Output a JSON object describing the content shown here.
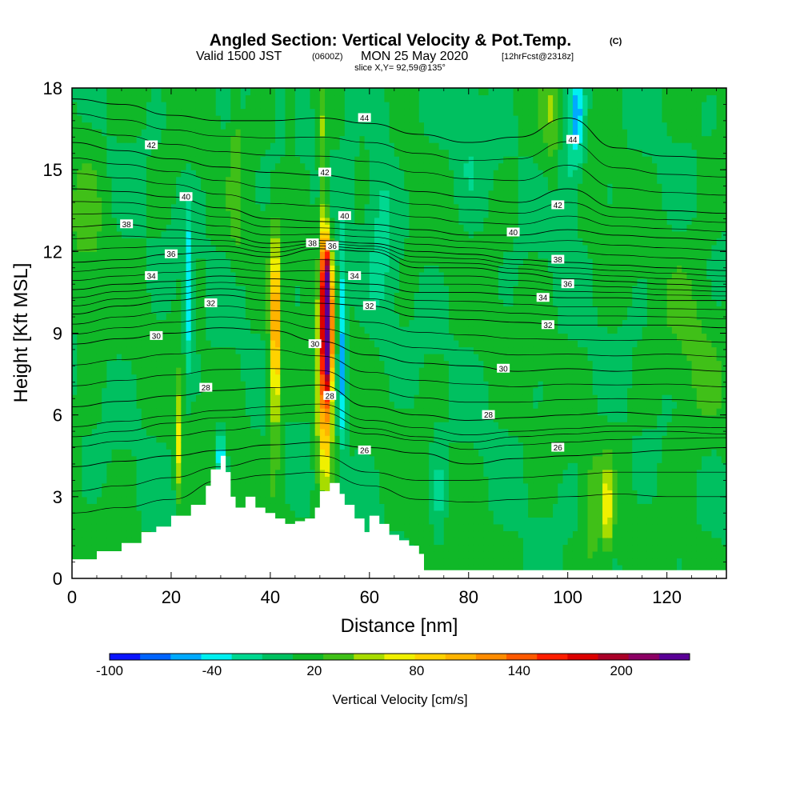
{
  "header": {
    "title": "Angled Section: Vertical Velocity & Pot.Temp.",
    "title_mark": "(C)",
    "valid_prefix": "Valid 1500 JST",
    "valid_utc": "(0600Z)",
    "valid_date": "MON 25 May 2020",
    "forecast": "[12hrFcst@2318z]",
    "slice": "slice X,Y= 92,59@135°"
  },
  "chart_data": {
    "type": "heatmap",
    "xlabel": "Distance [nm]",
    "ylabel": "Height [Kft MSL]",
    "xlim": [
      0,
      132
    ],
    "ylim": [
      0,
      18
    ],
    "xticks": [
      "0",
      "20",
      "40",
      "60",
      "80",
      "100",
      "120"
    ],
    "xtick_values": [
      0,
      20,
      40,
      60,
      80,
      100,
      120
    ],
    "yticks": [
      "0",
      "3",
      "6",
      "9",
      "12",
      "15",
      "18"
    ],
    "ytick_values": [
      0,
      3,
      6,
      9,
      12,
      15,
      18
    ],
    "grid": false,
    "colorbar": {
      "label": "Vertical Velocity [cm/s]",
      "min": -100,
      "max": 240,
      "tick_labels": [
        "-100",
        "-40",
        "20",
        "80",
        "140",
        "200"
      ],
      "tick_values": [
        -100,
        -40,
        20,
        80,
        140,
        200
      ],
      "colors": [
        "#0a14ff",
        "#0064ff",
        "#00aaff",
        "#00f0f0",
        "#00d890",
        "#00c060",
        "#10b828",
        "#40c018",
        "#a8dc00",
        "#f0f000",
        "#ffd200",
        "#ffb400",
        "#ff8c00",
        "#ff5a00",
        "#ff1e00",
        "#dc0000",
        "#aa0028",
        "#8c0064",
        "#5a0096"
      ]
    },
    "background_w_cms": 10,
    "velocity_features": [
      {
        "x": 41,
        "z": 10.0,
        "sx": 0.7,
        "sz": 1.8,
        "w": 80
      },
      {
        "x": 41,
        "z": 7.5,
        "sx": 0.8,
        "sz": 2.2,
        "w": 60
      },
      {
        "x": 51.5,
        "z": 9.5,
        "sx": 0.7,
        "sz": 1.6,
        "w": 220
      },
      {
        "x": 51,
        "z": 7.0,
        "sx": 1.1,
        "sz": 2.5,
        "w": 120
      },
      {
        "x": 51,
        "z": 11.5,
        "sx": 0.6,
        "sz": 1.3,
        "w": 90
      },
      {
        "x": 50.5,
        "z": 15.5,
        "sx": 0.5,
        "sz": 2.2,
        "w": 35
      },
      {
        "x": 44,
        "z": 16.5,
        "sx": 0.6,
        "sz": 1.5,
        "w": 30
      },
      {
        "x": 21.5,
        "z": 5.0,
        "sx": 0.5,
        "sz": 1.5,
        "w": 55
      },
      {
        "x": 108,
        "z": 2.5,
        "sx": 0.8,
        "sz": 1.2,
        "w": 55
      },
      {
        "x": 105,
        "z": 2.0,
        "sx": 1.2,
        "sz": 1.6,
        "w": 25
      },
      {
        "x": 97,
        "z": 17.0,
        "sx": 1.3,
        "sz": 1.5,
        "w": 28
      },
      {
        "x": 33,
        "z": 15.0,
        "sx": 0.7,
        "sz": 2.5,
        "w": 26
      },
      {
        "x": 54.5,
        "z": 9.5,
        "sx": 0.6,
        "sz": 2.0,
        "w": -55
      },
      {
        "x": 54.5,
        "z": 6.5,
        "sx": 0.6,
        "sz": 1.6,
        "w": -35
      },
      {
        "x": 30,
        "z": 4.5,
        "sx": 0.6,
        "sz": 0.8,
        "w": -60
      },
      {
        "x": 23.5,
        "z": 9.5,
        "sx": 0.5,
        "sz": 1.5,
        "w": -45
      },
      {
        "x": 23.5,
        "z": 12.0,
        "sx": 0.6,
        "sz": 1.3,
        "w": -30
      },
      {
        "x": 62.5,
        "z": 13.5,
        "sx": 2.0,
        "sz": 3.0,
        "w": -25
      },
      {
        "x": 102,
        "z": 17.0,
        "sx": 1.0,
        "sz": 1.3,
        "w": -55
      },
      {
        "x": 100,
        "z": 15.0,
        "sx": 1.5,
        "sz": 2.0,
        "w": -30
      },
      {
        "x": 74,
        "z": 3.0,
        "sx": 1.0,
        "sz": 1.5,
        "w": -25
      },
      {
        "x": 80,
        "z": 16.0,
        "sx": 2.0,
        "sz": 2.0,
        "w": -15
      },
      {
        "x": 56,
        "z": 17.0,
        "sx": 1.0,
        "sz": 1.5,
        "w": -20
      },
      {
        "x": 125,
        "z": 8.0,
        "sx": 4.0,
        "sz": 3.0,
        "w": 14
      },
      {
        "x": 3,
        "z": 14.0,
        "sx": 2.5,
        "sz": 3.0,
        "w": 15
      }
    ],
    "terrain": {
      "x": [
        0,
        5,
        10,
        14,
        17,
        20,
        24,
        27,
        28,
        30,
        31,
        32,
        33,
        35,
        37,
        39,
        41,
        43,
        45,
        47,
        49,
        50,
        52,
        54,
        55,
        57,
        59,
        60,
        62,
        64,
        66,
        68,
        70,
        71,
        132
      ],
      "z": [
        0.7,
        1.0,
        1.3,
        1.7,
        1.9,
        2.3,
        2.7,
        3.4,
        4.0,
        4.5,
        3.9,
        3.0,
        2.6,
        3.0,
        2.6,
        2.4,
        2.2,
        2.0,
        2.1,
        2.2,
        2.6,
        3.2,
        3.5,
        3.1,
        2.7,
        2.2,
        1.7,
        2.3,
        2.0,
        1.6,
        1.4,
        1.2,
        0.9,
        0.3,
        0.3
      ]
    },
    "theta_contours": [
      {
        "level": 26,
        "label": "26",
        "z": [
          4.1,
          4.3,
          4.5,
          4.7,
          4.9,
          5.0,
          4.8,
          4.6,
          4.2,
          4.4,
          4.5,
          4.6,
          4.7,
          4.8
        ]
      },
      {
        "level": 28,
        "label": "28",
        "z": [
          6.3,
          6.5,
          6.7,
          6.9,
          7.0,
          7.1,
          6.3,
          6.0,
          5.8,
          5.9,
          6.0,
          6.1,
          6.0,
          5.9
        ]
      },
      {
        "level": 30,
        "label": "30",
        "z": [
          8.6,
          8.8,
          9.0,
          9.2,
          9.1,
          8.7,
          8.2,
          7.9,
          7.8,
          7.6,
          7.7,
          7.6,
          7.7,
          7.6
        ]
      },
      {
        "level": 32,
        "label": "32",
        "z": [
          9.7,
          10.0,
          10.2,
          10.4,
          10.2,
          10.1,
          10.0,
          9.6,
          9.5,
          9.4,
          9.3,
          9.3,
          9.3,
          9.2
        ]
      },
      {
        "level": 34,
        "label": "34",
        "z": [
          10.6,
          10.8,
          10.9,
          11.1,
          11.0,
          10.9,
          10.8,
          10.5,
          10.5,
          10.4,
          10.3,
          10.3,
          10.2,
          10.2
        ]
      },
      {
        "level": 36,
        "label": "36",
        "z": [
          11.6,
          11.7,
          11.9,
          12.0,
          11.8,
          12.1,
          12.0,
          11.4,
          11.4,
          11.2,
          11.0,
          10.9,
          10.8,
          10.7
        ]
      },
      {
        "level": 38,
        "label": "38",
        "z": [
          12.9,
          13.0,
          12.8,
          12.6,
          12.3,
          12.4,
          12.3,
          12.0,
          11.9,
          11.7,
          11.6,
          11.5,
          11.4,
          11.3
        ]
      },
      {
        "level": 40,
        "label": "40",
        "z": [
          14.3,
          14.2,
          14.0,
          13.6,
          13.2,
          13.1,
          13.0,
          12.8,
          12.6,
          12.6,
          12.8,
          12.6,
          12.5,
          12.4
        ]
      },
      {
        "level": 42,
        "label": "42",
        "z": [
          16.0,
          15.7,
          15.4,
          15.1,
          14.9,
          14.8,
          14.6,
          14.2,
          14.0,
          13.8,
          14.3,
          13.6,
          13.5,
          13.4
        ]
      },
      {
        "level": 44,
        "label": "44",
        "z": [
          17.6,
          17.4,
          17.0,
          16.8,
          16.8,
          16.9,
          16.7,
          16.3,
          16.0,
          16.2,
          16.9,
          15.8,
          15.5,
          15.4
        ]
      }
    ],
    "contour_x": [
      0,
      10,
      20,
      30,
      40,
      50,
      60,
      70,
      80,
      90,
      100,
      110,
      120,
      132
    ],
    "contour_labels": [
      {
        "label": "26",
        "x": 59,
        "z": 4.7
      },
      {
        "label": "26",
        "x": 98,
        "z": 4.8
      },
      {
        "label": "28",
        "x": 27,
        "z": 7.0
      },
      {
        "label": "28",
        "x": 52,
        "z": 6.7
      },
      {
        "label": "28",
        "x": 84,
        "z": 6.0
      },
      {
        "label": "30",
        "x": 17,
        "z": 8.9
      },
      {
        "label": "30",
        "x": 49,
        "z": 8.6
      },
      {
        "label": "30",
        "x": 87,
        "z": 7.7
      },
      {
        "label": "32",
        "x": 28,
        "z": 10.1
      },
      {
        "label": "32",
        "x": 60,
        "z": 10.0
      },
      {
        "label": "32",
        "x": 96,
        "z": 9.3
      },
      {
        "label": "34",
        "x": 16,
        "z": 11.1
      },
      {
        "label": "34",
        "x": 57,
        "z": 11.1
      },
      {
        "label": "34",
        "x": 95,
        "z": 10.3
      },
      {
        "label": "36",
        "x": 20,
        "z": 11.9
      },
      {
        "label": "36",
        "x": 52.5,
        "z": 12.2
      },
      {
        "label": "36",
        "x": 100,
        "z": 10.8
      },
      {
        "label": "38",
        "x": 11,
        "z": 13.0
      },
      {
        "label": "38",
        "x": 48.5,
        "z": 12.3
      },
      {
        "label": "38",
        "x": 98,
        "z": 11.7
      },
      {
        "label": "40",
        "x": 23,
        "z": 14.0
      },
      {
        "label": "40",
        "x": 55,
        "z": 13.3
      },
      {
        "label": "40",
        "x": 89,
        "z": 12.7
      },
      {
        "label": "42",
        "x": 16,
        "z": 15.9
      },
      {
        "label": "42",
        "x": 51,
        "z": 14.9
      },
      {
        "label": "42",
        "x": 98,
        "z": 13.7
      },
      {
        "label": "44",
        "x": 59,
        "z": 16.9
      },
      {
        "label": "44",
        "x": 101,
        "z": 16.1
      }
    ]
  }
}
